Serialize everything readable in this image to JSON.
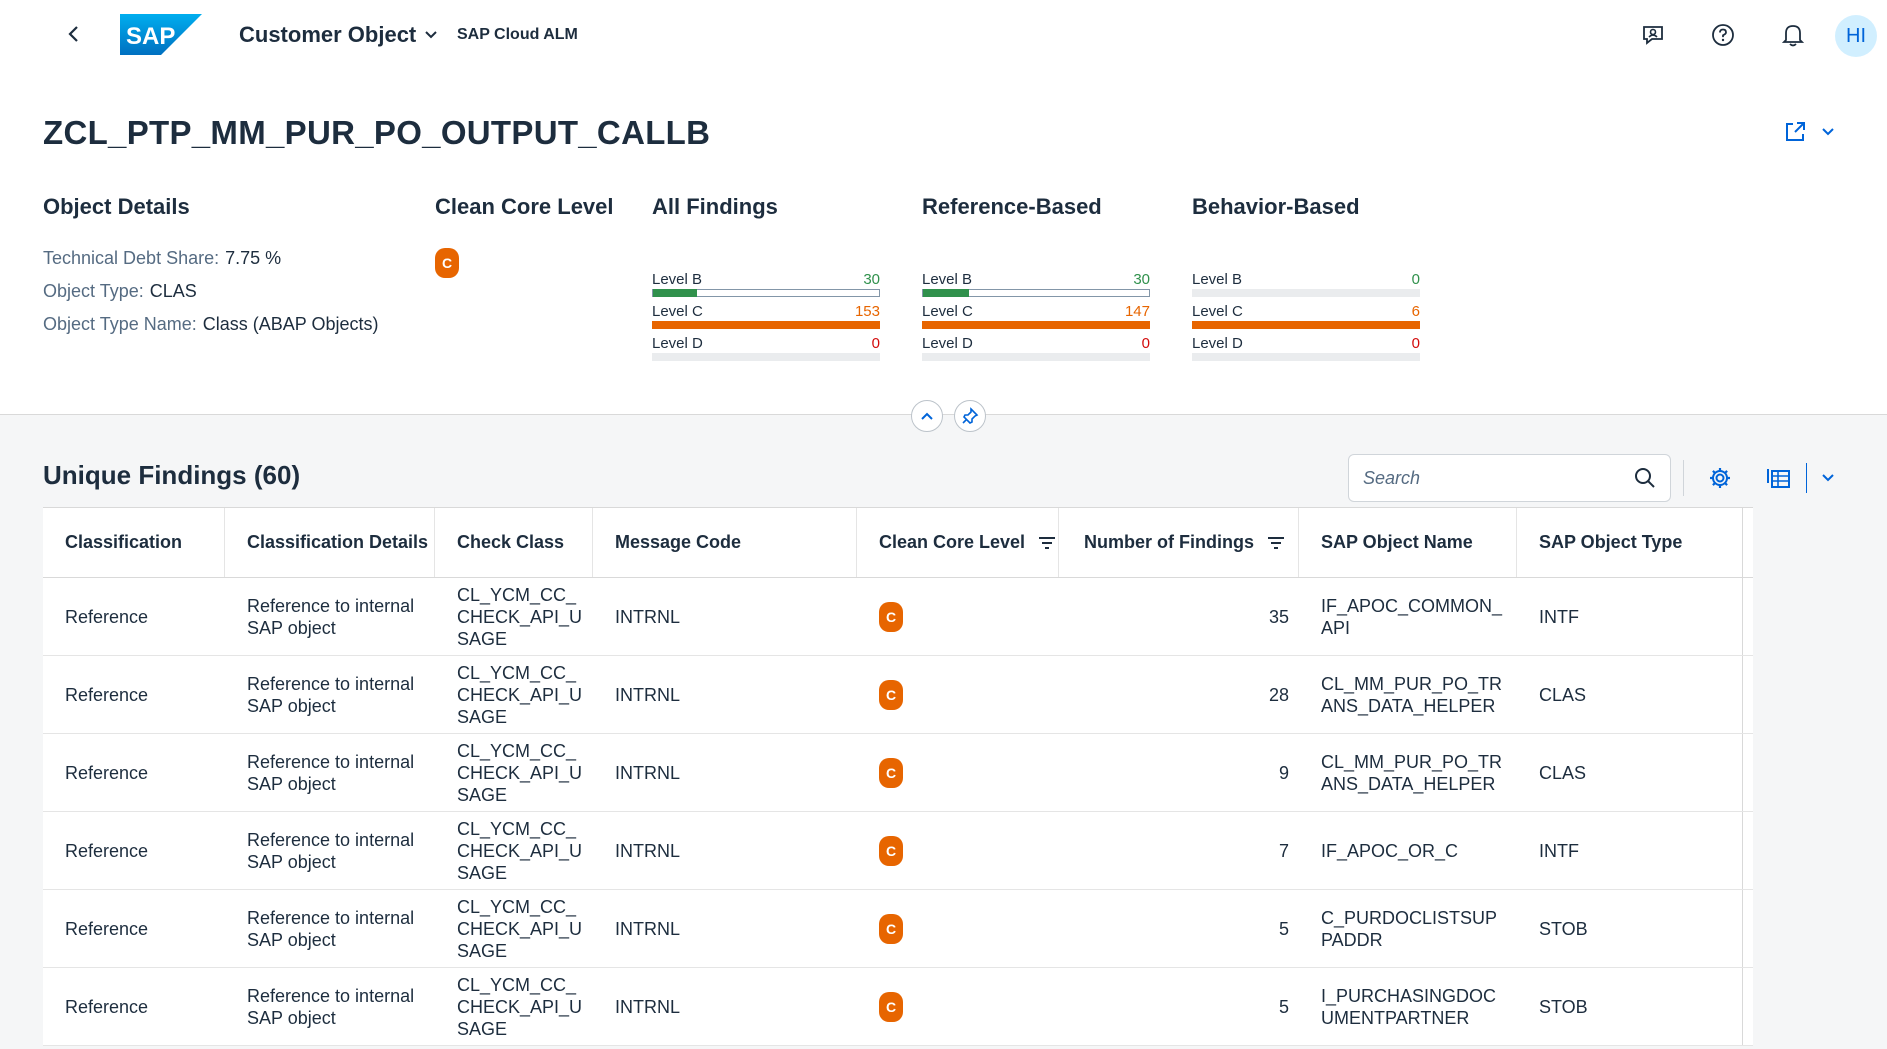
{
  "shell": {
    "app_title": "Customer Object",
    "app_subtitle": "SAP Cloud ALM",
    "logo_text": "SAP",
    "avatar_initials": "HI"
  },
  "object": {
    "title": "ZCL_PTP_MM_PUR_PO_OUTPUT_CALLB"
  },
  "details": {
    "heading": "Object Details",
    "rows": [
      {
        "label": "Technical Debt Share:",
        "value": "7.75 %"
      },
      {
        "label": "Object Type:",
        "value": "CLAS"
      },
      {
        "label": "Object Type Name:",
        "value": "Class (ABAP Objects)"
      }
    ]
  },
  "clean_core": {
    "heading": "Clean Core Level",
    "badge": "C"
  },
  "all_findings": {
    "heading": "All Findings",
    "levels": [
      {
        "label": "Level B",
        "value": "30",
        "fraction": 0.196
      },
      {
        "label": "Level C",
        "value": "153",
        "fraction": 1.0
      },
      {
        "label": "Level D",
        "value": "0",
        "fraction": 0
      }
    ]
  },
  "reference_based": {
    "heading": "Reference-Based",
    "levels": [
      {
        "label": "Level B",
        "value": "30",
        "fraction": 0.204
      },
      {
        "label": "Level C",
        "value": "147",
        "fraction": 1.0
      },
      {
        "label": "Level D",
        "value": "0",
        "fraction": 0
      }
    ]
  },
  "behavior_based": {
    "heading": "Behavior-Based",
    "levels": [
      {
        "label": "Level B",
        "value": "0",
        "fraction": 0
      },
      {
        "label": "Level C",
        "value": "6",
        "fraction": 1.0
      },
      {
        "label": "Level D",
        "value": "0",
        "fraction": 0
      }
    ]
  },
  "colors": {
    "level_b": "#30914c",
    "level_c": "#e76500",
    "level_d": "#d20a0a",
    "accent": "#0064d9"
  },
  "table": {
    "title": "Unique Findings (60)",
    "search_placeholder": "Search",
    "columns": [
      "Classification",
      "Classification Details",
      "Check Class",
      "Message Code",
      "Clean Core Level",
      "Number of Findings",
      "SAP Object Name",
      "SAP Object Type"
    ],
    "rows": [
      {
        "classification": "Reference",
        "details": "Reference to internal SAP object",
        "check_class": "CL_YCM_CC_CHECK_API_USAGE",
        "message_code": "INTRNL",
        "level": "C",
        "count": "35",
        "object_name": "IF_APOC_COMMON_API",
        "object_type": "INTF"
      },
      {
        "classification": "Reference",
        "details": "Reference to internal SAP object",
        "check_class": "CL_YCM_CC_CHECK_API_USAGE",
        "message_code": "INTRNL",
        "level": "C",
        "count": "28",
        "object_name": "CL_MM_PUR_PO_TRANS_DATA_HELPER",
        "object_type": "CLAS"
      },
      {
        "classification": "Reference",
        "details": "Reference to internal SAP object",
        "check_class": "CL_YCM_CC_CHECK_API_USAGE",
        "message_code": "INTRNL",
        "level": "C",
        "count": "9",
        "object_name": "CL_MM_PUR_PO_TRANS_DATA_HELPER",
        "object_type": "CLAS"
      },
      {
        "classification": "Reference",
        "details": "Reference to internal SAP object",
        "check_class": "CL_YCM_CC_CHECK_API_USAGE",
        "message_code": "INTRNL",
        "level": "C",
        "count": "7",
        "object_name": "IF_APOC_OR_C",
        "object_type": "INTF"
      },
      {
        "classification": "Reference",
        "details": "Reference to internal SAP object",
        "check_class": "CL_YCM_CC_CHECK_API_USAGE",
        "message_code": "INTRNL",
        "level": "C",
        "count": "5",
        "object_name": "C_PURDOCLISTSUPPADDR",
        "object_type": "STOB"
      },
      {
        "classification": "Reference",
        "details": "Reference to internal SAP object",
        "check_class": "CL_YCM_CC_CHECK_API_USAGE",
        "message_code": "INTRNL",
        "level": "C",
        "count": "5",
        "object_name": "I_PURCHASINGDOCUMENTPARTNER",
        "object_type": "STOB"
      }
    ]
  }
}
